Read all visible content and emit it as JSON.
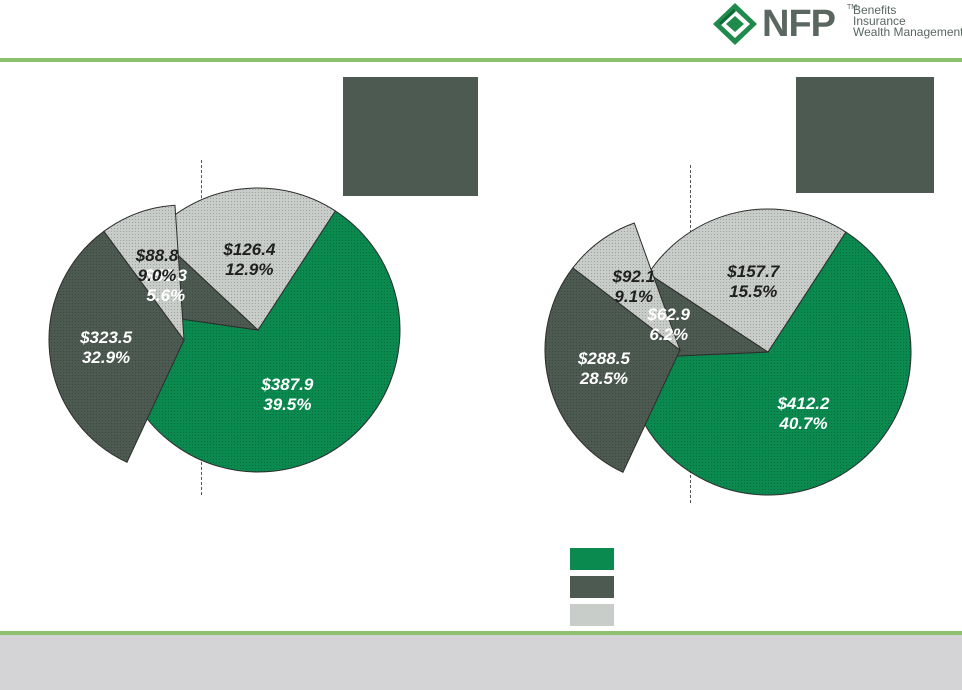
{
  "brand": {
    "name": "NFP",
    "tm": "TM",
    "tagline": [
      "Benefits",
      "Insurance",
      "Wealth Management"
    ]
  },
  "colors": {
    "accent_rule": "#8dc16e",
    "green": "#0a8a4f",
    "dark": "#4d5a52",
    "light": "#c9cdc9",
    "footer": "#d4d4d6"
  },
  "chart_data": [
    {
      "type": "pie",
      "subtype": "exploded-split",
      "left": [
        {
          "value": 88.8,
          "value_label": "$88.8",
          "pct_label": "9.0%",
          "color": "light"
        },
        {
          "value": 323.5,
          "value_label": "$323.5",
          "pct_label": "32.9%",
          "color": "dark"
        }
      ],
      "right": [
        {
          "value": 387.9,
          "value_label": "$387.9",
          "pct_label": "39.5%",
          "color": "green"
        },
        {
          "value": 55.3,
          "value_label": "$55.3",
          "pct_label": "5.6%",
          "color": "dark"
        },
        {
          "value": 126.4,
          "value_label": "$126.4",
          "pct_label": "12.9%",
          "color": "light"
        }
      ]
    },
    {
      "type": "pie",
      "subtype": "exploded-split",
      "left": [
        {
          "value": 92.1,
          "value_label": "$92.1",
          "pct_label": "9.1%",
          "color": "light"
        },
        {
          "value": 288.5,
          "value_label": "$288.5",
          "pct_label": "28.5%",
          "color": "dark"
        }
      ],
      "right": [
        {
          "value": 412.2,
          "value_label": "$412.2",
          "pct_label": "40.7%",
          "color": "green"
        },
        {
          "value": 62.9,
          "value_label": "$62.9",
          "pct_label": "6.2%",
          "color": "dark"
        },
        {
          "value": 157.7,
          "value_label": "$157.7",
          "pct_label": "15.5%",
          "color": "light"
        }
      ]
    }
  ],
  "legend": [
    {
      "color": "green"
    },
    {
      "color": "dark"
    },
    {
      "color": "light"
    }
  ]
}
